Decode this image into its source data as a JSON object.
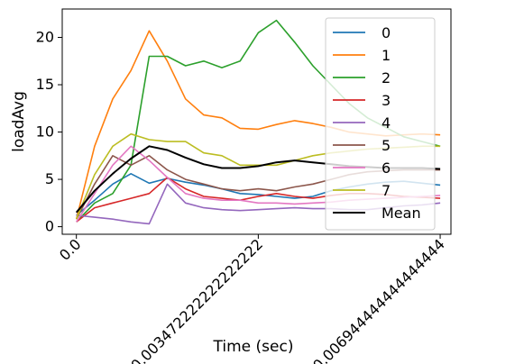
{
  "chart_data": {
    "type": "line",
    "title": "",
    "xlabel": "Time (sec)",
    "ylabel": "loadAvg",
    "xlim": [
      -0.00027,
      0.00715
    ],
    "ylim": [
      -0.8,
      23.0
    ],
    "x_ticks": [
      {
        "value": 0.0,
        "label": "0.0"
      },
      {
        "value": 0.003472222222222222,
        "label": "0.003472222222222222"
      },
      {
        "value": 0.006944444444444444,
        "label": "0.006944444444444444"
      }
    ],
    "y_ticks": [
      0,
      5,
      10,
      15,
      20
    ],
    "grid": false,
    "legend_position": "upper right",
    "x": [
      0.0,
      0.0003472,
      0.0006944,
      0.0010417,
      0.0013889,
      0.0017361,
      0.0020833,
      0.0024306,
      0.0027778,
      0.003125,
      0.0034722,
      0.0038194,
      0.0041667,
      0.0045139,
      0.0048611,
      0.0052083,
      0.0055556,
      0.0059028,
      0.00625,
      0.0065972,
      0.0069444
    ],
    "series": [
      {
        "name": "0",
        "color": "#1f77b4",
        "values": [
          1.2,
          2.8,
          4.5,
          5.6,
          4.6,
          5.1,
          4.7,
          4.4,
          4.0,
          3.5,
          3.4,
          3.2,
          3.0,
          3.2,
          3.8,
          4.2,
          4.5,
          4.7,
          4.8,
          4.6,
          4.4
        ]
      },
      {
        "name": "1",
        "color": "#ff7f0e",
        "values": [
          0.8,
          8.5,
          13.5,
          16.5,
          20.7,
          17.5,
          13.5,
          11.8,
          11.5,
          10.4,
          10.3,
          10.8,
          11.2,
          10.9,
          10.5,
          10.0,
          9.8,
          9.6,
          9.7,
          9.8,
          9.7
        ]
      },
      {
        "name": "2",
        "color": "#2ca02c",
        "values": [
          0.5,
          2.5,
          3.5,
          6.5,
          18.0,
          18.0,
          17.0,
          17.5,
          16.8,
          17.5,
          20.5,
          21.8,
          19.5,
          17.0,
          15.0,
          13.0,
          11.5,
          10.5,
          9.5,
          9.0,
          8.5
        ]
      },
      {
        "name": "3",
        "color": "#d62728",
        "values": [
          0.5,
          2.0,
          2.5,
          3.0,
          3.5,
          5.2,
          4.0,
          3.2,
          3.0,
          2.8,
          3.2,
          3.5,
          3.2,
          3.0,
          3.3,
          3.5,
          3.5,
          3.4,
          3.2,
          3.1,
          3.0
        ]
      },
      {
        "name": "4",
        "color": "#9467bd",
        "values": [
          1.2,
          1.0,
          0.8,
          0.5,
          0.3,
          4.5,
          2.5,
          2.0,
          1.8,
          1.7,
          1.8,
          1.9,
          2.0,
          1.9,
          1.9,
          1.8,
          1.8,
          2.0,
          2.2,
          2.3,
          2.5
        ]
      },
      {
        "name": "5",
        "color": "#8c564b",
        "values": [
          0.8,
          4.5,
          7.5,
          6.5,
          7.5,
          6.0,
          5.0,
          4.5,
          4.0,
          3.8,
          4.0,
          3.8,
          4.2,
          4.5,
          5.0,
          5.5,
          5.8,
          5.9,
          6.0,
          6.0,
          6.0
        ]
      },
      {
        "name": "6",
        "color": "#e377c2",
        "values": [
          0.5,
          3.5,
          6.5,
          8.5,
          7.0,
          5.2,
          3.5,
          3.0,
          2.8,
          2.8,
          2.5,
          2.5,
          2.4,
          2.5,
          2.6,
          2.8,
          2.9,
          3.0,
          3.1,
          3.2,
          3.3
        ]
      },
      {
        "name": "7",
        "color": "#bcbd22",
        "values": [
          0.8,
          5.5,
          8.5,
          9.8,
          9.2,
          9.0,
          9.0,
          7.8,
          7.5,
          6.5,
          6.5,
          6.5,
          7.0,
          7.5,
          7.8,
          8.0,
          8.2,
          8.3,
          8.4,
          8.5,
          8.5
        ]
      },
      {
        "name": "Mean",
        "color": "#000000",
        "values": [
          1.5,
          3.8,
          5.6,
          7.2,
          8.5,
          8.1,
          7.3,
          6.6,
          6.2,
          6.2,
          6.4,
          6.8,
          7.0,
          6.8,
          6.6,
          6.4,
          6.3,
          6.2,
          6.2,
          6.2,
          6.1
        ]
      }
    ]
  }
}
